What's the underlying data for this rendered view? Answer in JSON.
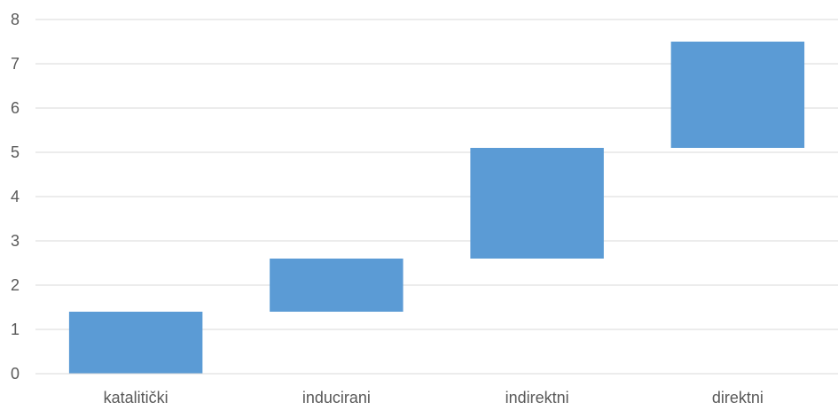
{
  "chart_data": {
    "type": "bar",
    "subtype": "floating",
    "categories": [
      "katalitički",
      "inducirani",
      "indirektni",
      "direktni"
    ],
    "series": [
      {
        "start": [
          0,
          1.4,
          2.6,
          5.1
        ],
        "end": [
          1.4,
          2.6,
          5.1,
          7.5
        ],
        "color": "#5b9bd5"
      }
    ],
    "ylim": [
      0,
      8
    ],
    "yticks": [
      0,
      1,
      2,
      3,
      4,
      5,
      6,
      7,
      8
    ],
    "grid": true,
    "legend": "none"
  }
}
